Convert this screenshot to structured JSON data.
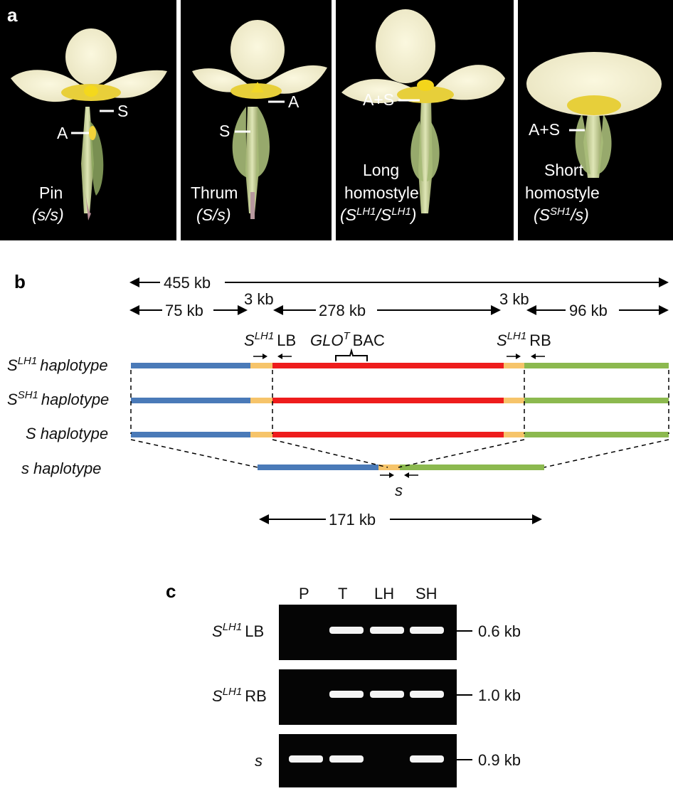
{
  "panel_a": {
    "letter": "a",
    "photos": [
      {
        "name": "Pin",
        "genotype": "(s/s)",
        "labels": {
          "stigma": "S",
          "anther": "A"
        }
      },
      {
        "name": "Thrum",
        "genotype": "(S/s)",
        "labels": {
          "stigma": "S",
          "anther": "A"
        }
      },
      {
        "name_line1": "Long",
        "name_line2": "homostyle",
        "genotype_prefix": "(S",
        "genotype_sup1": "LH1",
        "genotype_mid": "/S",
        "genotype_sup2": "LH1",
        "genotype_suffix": ")",
        "labels": {
          "both": "A+S"
        }
      },
      {
        "name_line1": "Short",
        "name_line2": "homostyle",
        "genotype_prefix": "(S",
        "genotype_sup1": "SH1",
        "genotype_suffix": "/s)",
        "labels": {
          "both": "A+S"
        }
      }
    ]
  },
  "panel_b": {
    "letter": "b",
    "total_span": "455 kb",
    "segments": {
      "left": "75 kb",
      "lb": "3 kb",
      "middle": "278 kb",
      "rb": "3 kb",
      "right": "96 kb"
    },
    "lb_primer": {
      "base": "S",
      "sup": "LH1",
      "suffix": "LB"
    },
    "rb_primer": {
      "base": "S",
      "sup": "LH1",
      "suffix": "RB"
    },
    "bac": {
      "base": "GLO",
      "sup": "T",
      "suffix": "BAC"
    },
    "haplotypes": [
      {
        "base": "S",
        "sup": "LH1",
        "suffix": "haplotype"
      },
      {
        "base": "S",
        "sup": "SH1",
        "suffix": "haplotype"
      },
      {
        "base": "S",
        "sup": "",
        "suffix": "haplotype"
      },
      {
        "base": "s",
        "sup": "",
        "suffix": "haplotype"
      }
    ],
    "s_primer": "s",
    "s_span": "171 kb",
    "colors": {
      "blue": "#4a7ab8",
      "orange": "#f6c46a",
      "red": "#ee1c1c",
      "green": "#8cb94f"
    }
  },
  "panel_c": {
    "letter": "c",
    "lanes": [
      "P",
      "T",
      "LH",
      "SH"
    ],
    "gels": [
      {
        "label_base": "S",
        "label_sup": "LH1",
        "label_suffix": "LB",
        "size": "0.6 kb",
        "bands": [
          0,
          1,
          1,
          1
        ]
      },
      {
        "label_base": "S",
        "label_sup": "LH1",
        "label_suffix": "RB",
        "size": "1.0 kb",
        "bands": [
          0,
          1,
          1,
          1
        ]
      },
      {
        "label_base": "s",
        "label_sup": "",
        "label_suffix": "",
        "size": "0.9 kb",
        "bands": [
          1,
          1,
          0,
          1
        ]
      }
    ]
  }
}
